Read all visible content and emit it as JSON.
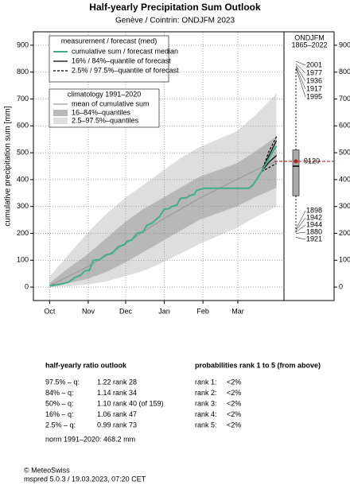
{
  "chart_data": {
    "type": "line",
    "title": "Half-yearly Precipitation Sum Outlook",
    "subtitle": "Genève / Cointrin: ONDJFM 2023",
    "ylabel": "cumulative precipitation sum [mm]",
    "xlim": [
      -13,
      188
    ],
    "xticks": [
      {
        "value": 0,
        "label": "Oct"
      },
      {
        "value": 31,
        "label": "Nov"
      },
      {
        "value": 61,
        "label": "Dec"
      },
      {
        "value": 92,
        "label": "Jan"
      },
      {
        "value": 123,
        "label": "Feb"
      },
      {
        "value": 151,
        "label": "Mar"
      }
    ],
    "ylim": [
      -50,
      950
    ],
    "yticks": [
      0,
      100,
      200,
      300,
      400,
      500,
      600,
      700,
      800,
      900
    ],
    "grid": true,
    "legend_title": "measurement / forecast (med)",
    "series": [
      {
        "name": "cumulative sum / forecast median",
        "color": "#3fae8a",
        "x": [
          0,
          5,
          10,
          15,
          20,
          25,
          28,
          32,
          35,
          40,
          45,
          50,
          55,
          60,
          62,
          66,
          70,
          75,
          78,
          82,
          85,
          88,
          92,
          96,
          98,
          102,
          105,
          110,
          112,
          116,
          118,
          122,
          125,
          140,
          160,
          163,
          166,
          170,
          173,
          176,
          179,
          182
        ],
        "values": [
          5,
          8,
          12,
          18,
          35,
          45,
          60,
          62,
          100,
          102,
          120,
          125,
          150,
          158,
          170,
          175,
          200,
          205,
          230,
          238,
          250,
          262,
          290,
          292,
          300,
          305,
          330,
          333,
          340,
          345,
          360,
          365,
          368,
          368,
          368,
          380,
          400,
          430,
          455,
          480,
          505,
          525
        ]
      }
    ],
    "forecast_quantiles": [
      {
        "name": "16% / 84%–quantile of forecast",
        "color": "#000000",
        "dash": false,
        "x": [
          170,
          176,
          182
        ],
        "lower": [
          430,
          465,
          490
        ],
        "upper": [
          430,
          490,
          545
        ]
      },
      {
        "name": "2.5% / 97.5%–quantile of forecast",
        "color": "#000000",
        "dash": true,
        "x": [
          170,
          176,
          182
        ],
        "lower": [
          430,
          445,
          460
        ],
        "upper": [
          430,
          505,
          560
        ]
      }
    ],
    "climatology": {
      "title": "climatology 1991–2020",
      "x": [
        0,
        15,
        30,
        45,
        60,
        75,
        90,
        105,
        120,
        135,
        150,
        165,
        182
      ],
      "mean": {
        "name": "mean of cumulative sum",
        "color": "#999999",
        "values": [
          5,
          40,
          75,
          115,
          160,
          205,
          250,
          290,
          330,
          365,
          400,
          435,
          468
        ]
      },
      "bands": [
        {
          "name": "16–84%–quantiles",
          "color": "#b8b8b8",
          "lower": [
            0,
            15,
            30,
            55,
            90,
            130,
            170,
            210,
            250,
            275,
            300,
            335,
            370
          ],
          "upper": [
            15,
            70,
            120,
            180,
            240,
            290,
            330,
            370,
            410,
            435,
            460,
            505,
            560
          ]
        },
        {
          "name": "2.5–97.5%–quantiles",
          "color": "#dedede",
          "lower": [
            0,
            3,
            10,
            20,
            40,
            60,
            90,
            125,
            160,
            190,
            220,
            260,
            300
          ],
          "upper": [
            40,
            120,
            200,
            270,
            330,
            380,
            430,
            480,
            520,
            550,
            580,
            640,
            720
          ]
        }
      ]
    },
    "panel": {
      "title": "ONDJFM",
      "subtitle": "1865–2022",
      "box": {
        "whisker_low": 200,
        "q1": 340,
        "median": 450,
        "q3": 510,
        "whisker_high": 815
      },
      "norm": {
        "label": "9120",
        "value": 468,
        "color": "#b22222"
      },
      "wet_years": [
        {
          "label": "2001",
          "value": 840
        },
        {
          "label": "1977",
          "value": 832
        },
        {
          "label": "1936",
          "value": 825
        },
        {
          "label": "1917",
          "value": 820
        },
        {
          "label": "1995",
          "value": 815
        }
      ],
      "dry_years": [
        {
          "label": "1898",
          "value": 215
        },
        {
          "label": "1942",
          "value": 210
        },
        {
          "label": "1944",
          "value": 205
        },
        {
          "label": "1880",
          "value": 200
        },
        {
          "label": "1921",
          "value": 185
        }
      ]
    }
  },
  "outlook": {
    "title": "half-yearly ratio outlook",
    "rows": [
      {
        "quantile": "97.5% – q:",
        "ratio": "1.22",
        "rank": "rank 28"
      },
      {
        "quantile": "84% – q:",
        "ratio": "1.14",
        "rank": "rank 34"
      },
      {
        "quantile": "50% – q:",
        "ratio": "1.10",
        "rank": "rank 40 (of 159)"
      },
      {
        "quantile": "16% – q:",
        "ratio": "1.06",
        "rank": "rank 47"
      },
      {
        "quantile": "2.5% – q:",
        "ratio": "0.99",
        "rank": "rank 73"
      }
    ],
    "norm": "norm 1991–2020: 468.2 mm"
  },
  "probabilities": {
    "title": "probabilities rank 1 to 5 (from above)",
    "rows": [
      {
        "rank": "rank 1:",
        "prob": "<2%"
      },
      {
        "rank": "rank 2:",
        "prob": "<2%"
      },
      {
        "rank": "rank 3:",
        "prob": "<2%"
      },
      {
        "rank": "rank 4:",
        "prob": "<2%"
      },
      {
        "rank": "rank 5:",
        "prob": "<2%"
      }
    ]
  },
  "footer": {
    "copyright": "© MeteoSwiss",
    "info": "mspred 5.0.3 / 19.03.2023, 07:20 CET"
  }
}
